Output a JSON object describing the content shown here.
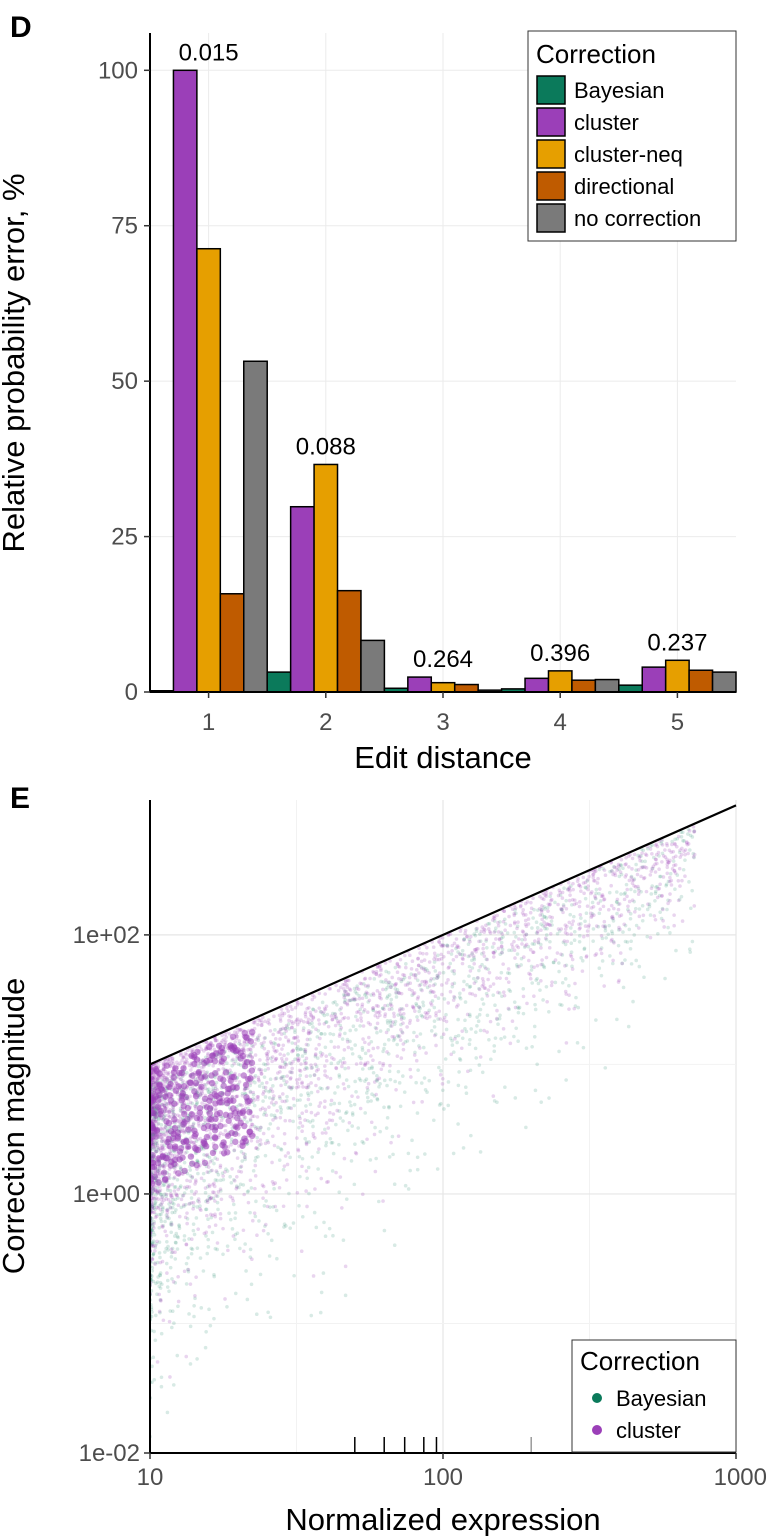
{
  "chart_data": [
    {
      "panel": "D",
      "type": "bar",
      "xlabel": "Edit distance",
      "ylabel": "Relative probability error, %",
      "categories": [
        "1",
        "2",
        "3",
        "4",
        "5"
      ],
      "ylim": [
        0,
        106
      ],
      "yticks": [
        0,
        25,
        50,
        75,
        100
      ],
      "grid": true,
      "series": [
        {
          "name": "Bayesian",
          "color": "#0b7a5b",
          "values": [
            0.2,
            3.2,
            0.6,
            0.5,
            1.1
          ]
        },
        {
          "name": "cluster",
          "color": "#9b3fb8",
          "values": [
            100,
            29.8,
            2.4,
            2.2,
            4.0
          ]
        },
        {
          "name": "cluster-neq",
          "color": "#e69f00",
          "values": [
            71.3,
            36.6,
            1.5,
            3.4,
            5.1
          ]
        },
        {
          "name": "directional",
          "color": "#bf5b00",
          "values": [
            15.8,
            16.3,
            1.2,
            1.9,
            3.5
          ]
        },
        {
          "name": "no correction",
          "color": "#7a7a7a",
          "values": [
            53.2,
            8.3,
            0.3,
            2.0,
            3.2
          ]
        }
      ],
      "annotations": [
        "0.015",
        "0.088",
        "0.264",
        "0.396",
        "0.237"
      ],
      "legend": {
        "title": "Correction",
        "position": "top-right"
      }
    },
    {
      "panel": "E",
      "type": "scatter",
      "xlabel": "Normalized expression",
      "ylabel": "Correction magnitude",
      "x_scale": "log",
      "y_scale": "log",
      "xlim": [
        10,
        1000
      ],
      "ylim": [
        0.01,
        1100
      ],
      "xticks": [
        "10",
        "100",
        "1000"
      ],
      "yticks": [
        "1e-02",
        "1e+00",
        "1e+02"
      ],
      "reference_line": "y = x",
      "grid": true,
      "series": [
        {
          "name": "Bayesian",
          "color": "#0b7a5b"
        },
        {
          "name": "cluster",
          "color": "#9b3fb8"
        }
      ],
      "legend": {
        "title": "Correction",
        "position": "bottom-right"
      }
    }
  ]
}
